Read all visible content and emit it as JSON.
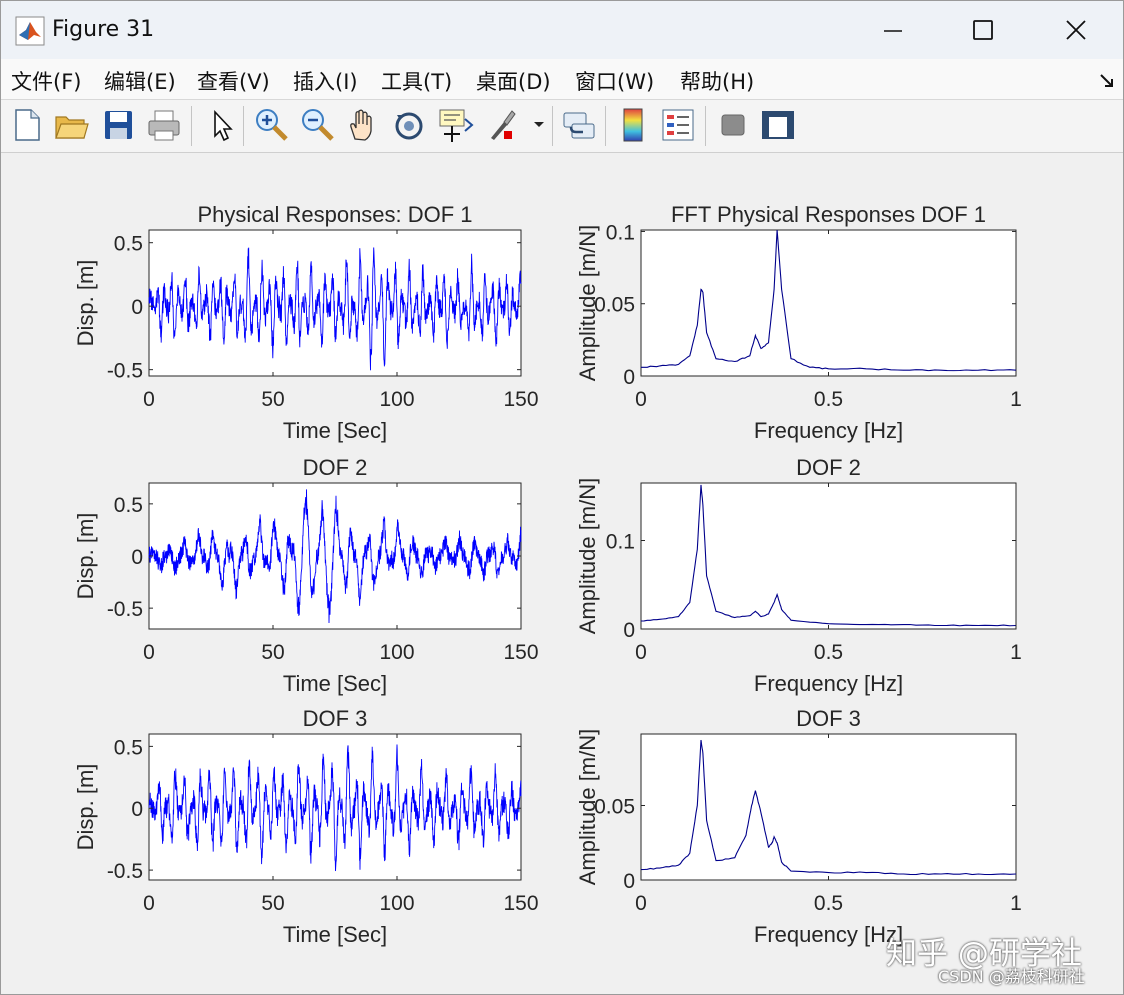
{
  "window": {
    "title": "Figure 31",
    "app_icon": "matlab-logo-icon",
    "controls": [
      "minimize-icon",
      "maximize-icon",
      "close-icon"
    ]
  },
  "menu": {
    "items": [
      "文件(F)",
      "编辑(E)",
      "查看(V)",
      "插入(I)",
      "工具(T)",
      "桌面(D)",
      "窗口(W)",
      "帮助(H)"
    ],
    "overflow_icon": "dock-arrow-icon"
  },
  "toolbar": {
    "icons": [
      "new-figure-icon",
      "open-file-icon",
      "save-icon",
      "print-icon",
      "pointer-icon",
      "zoom-in-icon",
      "zoom-out-icon",
      "pan-icon",
      "rotate-3d-icon",
      "data-cursor-icon",
      "brush-icon",
      "link-plot-icon",
      "colorbar-icon",
      "legend-icon",
      "hide-plot-tools-icon",
      "show-plot-tools-icon"
    ]
  },
  "chart_data": [
    {
      "type": "line",
      "title": "Physical Responses: DOF 1",
      "xlabel": "Time [Sec]",
      "ylabel": "Disp. [m]",
      "xlim": [
        0,
        150
      ],
      "ylim": [
        -0.55,
        0.6
      ],
      "xticks": [
        "0",
        "50",
        "100",
        "150"
      ],
      "yticks": [
        "-0.5",
        "0",
        "0.5"
      ],
      "grid": false,
      "line_color": "#0000ff",
      "signal": {
        "kind": "random_response",
        "peak_amplitude": 0.6,
        "typical_amplitude": 0.3,
        "dominant_period_s": 2.8
      },
      "series": [
        {
          "x": [
            0,
            5,
            10,
            15,
            20,
            25,
            30,
            35,
            40,
            45,
            50,
            55,
            60,
            65,
            70,
            75,
            80,
            85,
            90,
            95,
            100,
            105,
            110,
            115,
            120,
            125,
            130,
            135,
            140,
            145,
            150
          ],
          "y": [
            0.15,
            -0.28,
            0.32,
            -0.3,
            0.33,
            -0.35,
            0.37,
            -0.38,
            0.5,
            -0.45,
            0.41,
            -0.4,
            0.45,
            -0.42,
            0.4,
            -0.37,
            0.46,
            -0.48,
            0.6,
            -0.53,
            0.41,
            -0.38,
            0.36,
            -0.33,
            0.35,
            -0.31,
            0.37,
            -0.33,
            0.35,
            -0.32,
            0.3
          ]
        }
      ]
    },
    {
      "type": "line",
      "title": "FFT Physical Responses DOF 1",
      "xlabel": "Frequency [Hz]",
      "ylabel": "Amplitude [m/N]",
      "xlim": [
        0,
        1
      ],
      "ylim": [
        0,
        0.101
      ],
      "xticks": [
        "0",
        "0.5",
        "1"
      ],
      "yticks": [
        "0",
        "0.05",
        "0.1"
      ],
      "grid": false,
      "line_color": "#00008b",
      "series": [
        {
          "x": [
            0,
            0.05,
            0.1,
            0.13,
            0.15,
            0.16,
            0.165,
            0.175,
            0.2,
            0.25,
            0.29,
            0.305,
            0.32,
            0.34,
            0.355,
            0.363,
            0.375,
            0.4,
            0.45,
            0.5,
            0.6,
            0.7,
            0.8,
            0.9,
            1.0
          ],
          "y": [
            0.006,
            0.007,
            0.008,
            0.014,
            0.035,
            0.06,
            0.058,
            0.03,
            0.012,
            0.01,
            0.014,
            0.028,
            0.019,
            0.023,
            0.06,
            0.101,
            0.06,
            0.012,
            0.006,
            0.005,
            0.005,
            0.004,
            0.004,
            0.004,
            0.004
          ]
        }
      ]
    },
    {
      "type": "line",
      "title": "DOF 2",
      "xlabel": "Time [Sec]",
      "ylabel": "Disp. [m]",
      "xlim": [
        0,
        150
      ],
      "ylim": [
        -0.7,
        0.7
      ],
      "xticks": [
        "0",
        "50",
        "100",
        "150"
      ],
      "yticks": [
        "-0.5",
        "0",
        "0.5"
      ],
      "grid": false,
      "line_color": "#0000ff",
      "signal": {
        "kind": "random_response",
        "peak_amplitude": 0.68,
        "typical_amplitude": 0.3,
        "dominant_period_s": 6.2
      },
      "series": [
        {
          "x": [
            0,
            5,
            10,
            15,
            20,
            25,
            30,
            35,
            40,
            45,
            50,
            55,
            60,
            65,
            70,
            75,
            80,
            85,
            90,
            95,
            100,
            105,
            110,
            115,
            120,
            125,
            130,
            135,
            140,
            145,
            150
          ],
          "y": [
            0.05,
            -0.12,
            0.18,
            -0.2,
            0.24,
            -0.3,
            0.36,
            -0.4,
            0.38,
            -0.42,
            0.45,
            -0.5,
            0.52,
            0.68,
            -0.55,
            -0.68,
            0.55,
            -0.5,
            0.45,
            -0.42,
            0.35,
            -0.3,
            0.22,
            -0.18,
            0.2,
            -0.2,
            0.28,
            -0.22,
            0.25,
            -0.2,
            0.3
          ]
        }
      ]
    },
    {
      "type": "line",
      "title": "DOF 2",
      "xlabel": "Frequency [Hz]",
      "ylabel": "Amplitude [m/N]",
      "xlim": [
        0,
        1
      ],
      "ylim": [
        0,
        0.165
      ],
      "xticks": [
        "0",
        "0.5",
        "1"
      ],
      "yticks": [
        "0",
        "0.1"
      ],
      "grid": false,
      "line_color": "#00008b",
      "series": [
        {
          "x": [
            0,
            0.05,
            0.1,
            0.13,
            0.15,
            0.16,
            0.165,
            0.175,
            0.2,
            0.25,
            0.29,
            0.305,
            0.32,
            0.34,
            0.355,
            0.363,
            0.375,
            0.4,
            0.5,
            0.6,
            0.7,
            0.8,
            0.9,
            1.0
          ],
          "y": [
            0.009,
            0.011,
            0.014,
            0.03,
            0.09,
            0.163,
            0.14,
            0.06,
            0.02,
            0.013,
            0.015,
            0.02,
            0.014,
            0.017,
            0.03,
            0.039,
            0.022,
            0.01,
            0.006,
            0.005,
            0.005,
            0.004,
            0.004,
            0.004
          ]
        }
      ]
    },
    {
      "type": "line",
      "title": "DOF 3",
      "xlabel": "Time [Sec]",
      "ylabel": "Disp. [m]",
      "xlim": [
        0,
        150
      ],
      "ylim": [
        -0.58,
        0.6
      ],
      "xticks": [
        "0",
        "50",
        "100",
        "150"
      ],
      "yticks": [
        "-0.5",
        "0",
        "0.5"
      ],
      "grid": false,
      "line_color": "#0000ff",
      "signal": {
        "kind": "random_response",
        "peak_amplitude": 0.6,
        "typical_amplitude": 0.32,
        "dominant_period_s": 3.3
      },
      "series": [
        {
          "x": [
            0,
            5,
            10,
            15,
            20,
            25,
            30,
            35,
            40,
            45,
            50,
            55,
            60,
            65,
            70,
            75,
            80,
            85,
            90,
            95,
            100,
            105,
            110,
            115,
            120,
            125,
            130,
            135,
            140,
            145,
            150
          ],
          "y": [
            0.1,
            -0.3,
            0.42,
            -0.4,
            0.45,
            -0.45,
            0.48,
            -0.5,
            0.5,
            -0.55,
            0.42,
            -0.45,
            0.45,
            -0.5,
            0.52,
            -0.57,
            0.6,
            -0.5,
            0.48,
            -0.45,
            0.45,
            -0.4,
            0.38,
            -0.35,
            0.35,
            -0.35,
            0.38,
            -0.32,
            0.35,
            -0.3,
            0.2
          ]
        }
      ]
    },
    {
      "type": "line",
      "title": "DOF 3",
      "xlabel": "Frequency [Hz]",
      "ylabel": "Amplitude [m/N]",
      "xlim": [
        0,
        1
      ],
      "ylim": [
        0,
        0.098
      ],
      "xticks": [
        "0",
        "0.5",
        "1"
      ],
      "yticks": [
        "0",
        "0.05"
      ],
      "grid": false,
      "line_color": "#00008b",
      "series": [
        {
          "x": [
            0,
            0.05,
            0.1,
            0.13,
            0.15,
            0.16,
            0.165,
            0.175,
            0.2,
            0.25,
            0.28,
            0.295,
            0.305,
            0.32,
            0.34,
            0.35,
            0.355,
            0.363,
            0.375,
            0.4,
            0.5,
            0.6,
            0.7,
            0.8,
            0.9,
            1.0
          ],
          "y": [
            0.007,
            0.008,
            0.01,
            0.018,
            0.05,
            0.094,
            0.085,
            0.04,
            0.013,
            0.015,
            0.03,
            0.05,
            0.06,
            0.045,
            0.022,
            0.025,
            0.029,
            0.025,
            0.012,
            0.006,
            0.005,
            0.005,
            0.004,
            0.004,
            0.004,
            0.004
          ]
        }
      ]
    }
  ],
  "watermark": {
    "main": "知乎 @研学社",
    "sub": "CSDN @荔枝科研社"
  }
}
